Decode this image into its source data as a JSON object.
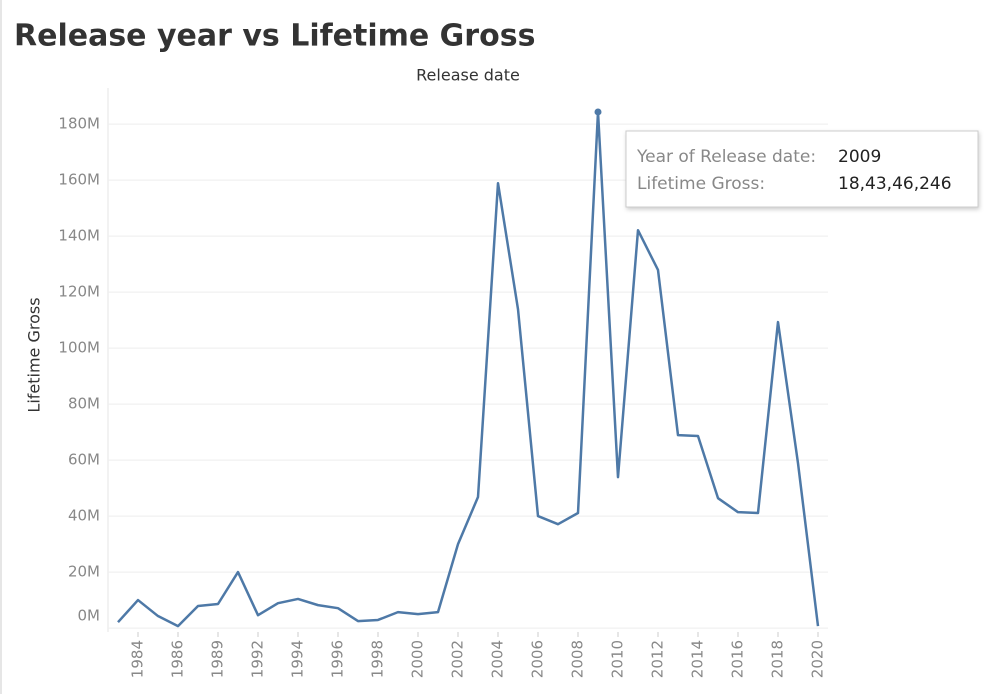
{
  "chart_data": {
    "type": "line",
    "title": "Release year vs Lifetime Gross",
    "x_label": "Release date",
    "y_label": "Lifetime Gross",
    "categories": [
      null,
      "1984",
      null,
      "1986",
      null,
      "1989",
      null,
      "1992",
      null,
      "1994",
      null,
      "1996",
      null,
      "1998",
      null,
      "2000",
      null,
      "2002",
      null,
      "2004",
      null,
      "2006",
      null,
      "2008",
      null,
      "2010",
      null,
      "2012",
      null,
      "2014",
      null,
      "2016",
      null,
      "2018",
      null,
      "2020"
    ],
    "values": [
      2.1,
      10,
      4.3,
      0.7,
      7.9,
      8.6,
      20,
      4.6,
      8.9,
      10.4,
      8.2,
      7.1,
      2.5,
      2.9,
      5.7,
      5,
      5.7,
      30,
      46.8,
      158.9,
      113.9,
      40,
      37.1,
      41.1,
      184.346246,
      53.9,
      142.1,
      127.9,
      68.9,
      68.6,
      46.4,
      41.4,
      41.1,
      109.3,
      58.9,
      0.7
    ],
    "color": "#4e79a7",
    "ylim": [
      -1.4,
      192.9
    ],
    "yticks": [
      {
        "value": 0,
        "label": "0M"
      },
      {
        "value": 20,
        "label": "20M"
      },
      {
        "value": 40,
        "label": "40M"
      },
      {
        "value": 60,
        "label": "60M"
      },
      {
        "value": 80,
        "label": "80M"
      },
      {
        "value": 100,
        "label": "100M"
      },
      {
        "value": 120,
        "label": "120M"
      },
      {
        "value": 140,
        "label": "140M"
      },
      {
        "value": 160,
        "label": "160M"
      },
      {
        "value": 180,
        "label": "180M"
      }
    ],
    "grid": true,
    "highlight_index": 24,
    "tooltip": {
      "rows": [
        [
          "Year of Release date:",
          "2009"
        ],
        [
          "Lifetime Gross:",
          "18,43,46,246"
        ]
      ]
    }
  }
}
